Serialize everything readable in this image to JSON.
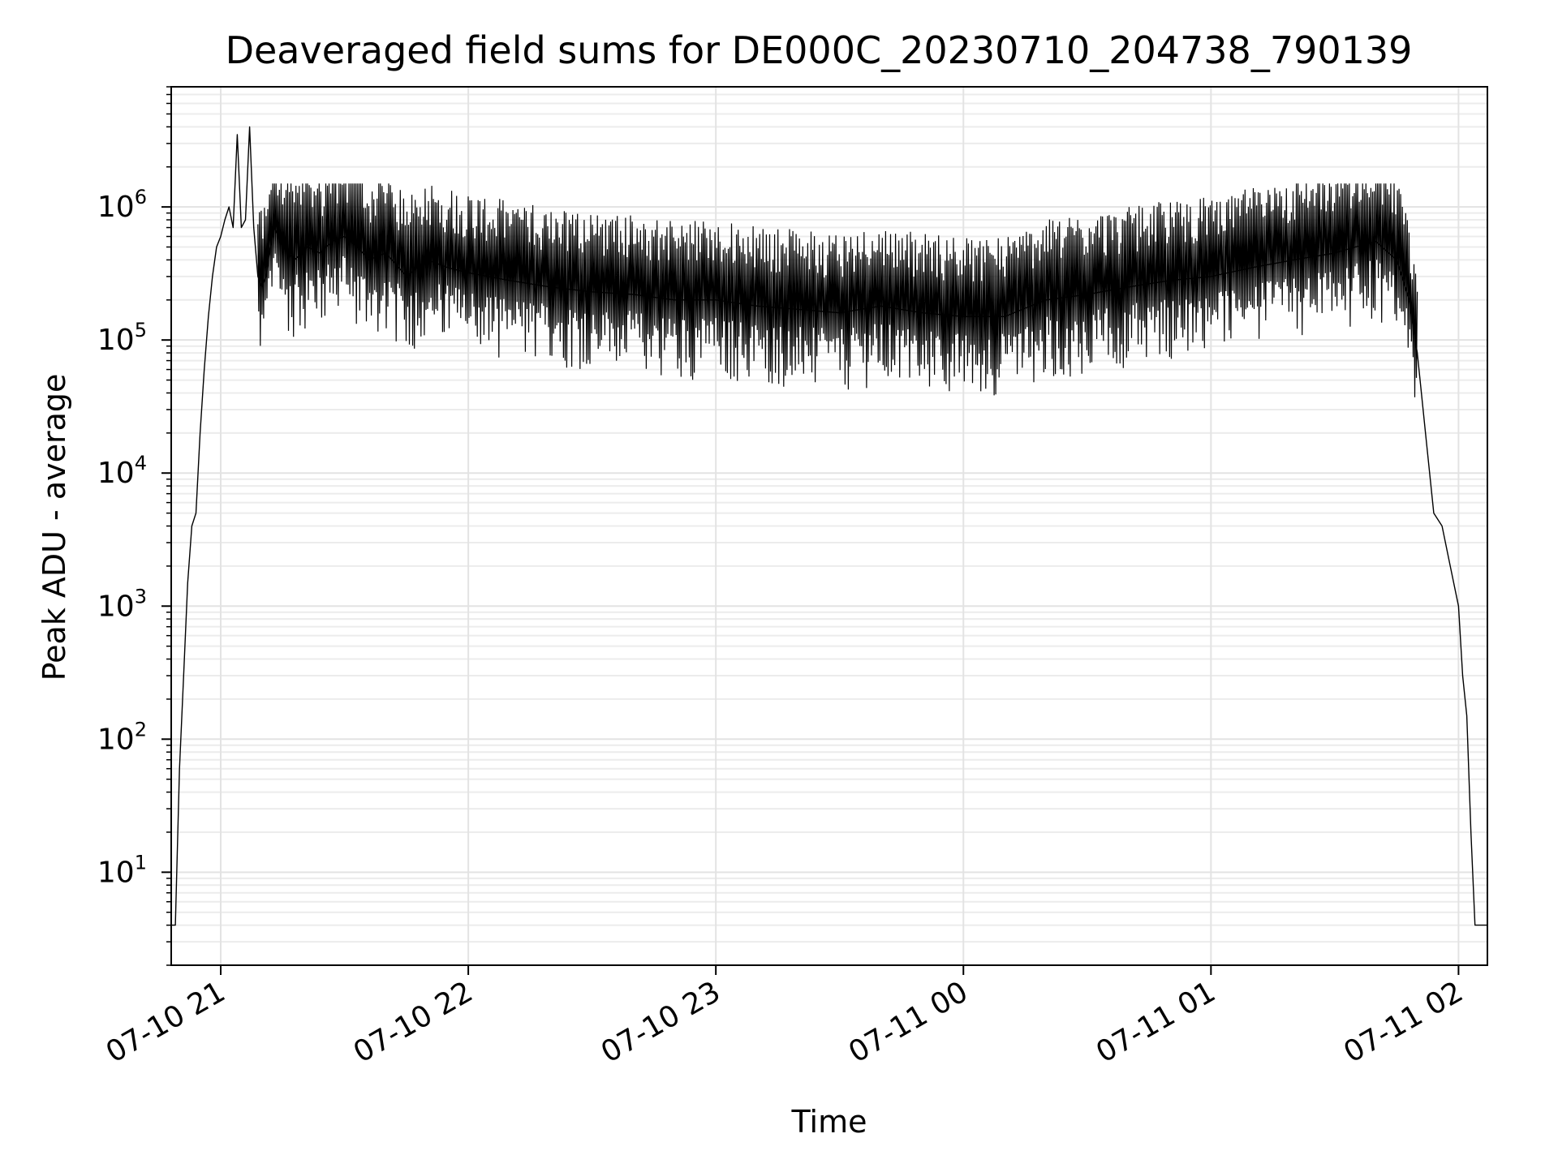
{
  "chart_data": {
    "type": "line",
    "title": "Deaveraged field sums for DE000C_20230710_204738_790139",
    "xlabel": "Time",
    "ylabel": "Peak ADU - average",
    "yscale": "log",
    "ylim": [
      2,
      8000000
    ],
    "xlim": [
      "07-10 20:48",
      "07-11 02:07"
    ],
    "grid": "major and minor, light gray",
    "line_color": "#000000",
    "x_ticks": [
      "07-10 21",
      "07-10 22",
      "07-10 23",
      "07-11 00",
      "07-11 01",
      "07-11 02"
    ],
    "y_ticks": [
      {
        "base": "10",
        "exp": "1"
      },
      {
        "base": "10",
        "exp": "2"
      },
      {
        "base": "10",
        "exp": "3"
      },
      {
        "base": "10",
        "exp": "4"
      },
      {
        "base": "10",
        "exp": "5"
      },
      {
        "base": "10",
        "exp": "6"
      }
    ],
    "series": [
      {
        "x": [
          "07-10 20:48",
          "07-10 20:49",
          "07-10 20:50",
          "07-10 20:51",
          "07-10 20:52",
          "07-10 20:53",
          "07-10 20:54",
          "07-10 20:55",
          "07-10 20:56",
          "07-10 20:57",
          "07-10 20:58",
          "07-10 20:59",
          "07-10 21:00",
          "07-10 21:01",
          "07-10 21:02",
          "07-10 21:03",
          "07-10 21:04",
          "07-10 21:05",
          "07-10 21:06",
          "07-10 21:07",
          "07-10 21:08",
          "07-10 21:09",
          "07-10 21:10",
          "07-10 21:11",
          "07-10 21:12",
          "07-10 21:13",
          "07-10 21:15",
          "07-10 21:18",
          "07-10 21:21",
          "07-10 21:24",
          "07-10 21:27",
          "07-10 21:30",
          "07-10 21:33",
          "07-10 21:36",
          "07-10 21:40",
          "07-10 21:45",
          "07-10 21:50",
          "07-10 21:55",
          "07-10 22:00",
          "07-10 22:10",
          "07-10 22:20",
          "07-10 22:30",
          "07-10 22:40",
          "07-10 22:50",
          "07-10 23:00",
          "07-10 23:10",
          "07-10 23:20",
          "07-10 23:30",
          "07-10 23:40",
          "07-10 23:50",
          "07-11 00:00",
          "07-11 00:10",
          "07-11 00:20",
          "07-11 00:30",
          "07-11 00:40",
          "07-11 00:50",
          "07-11 01:00",
          "07-11 01:10",
          "07-11 01:20",
          "07-11 01:30",
          "07-11 01:35",
          "07-11 01:40",
          "07-11 01:45",
          "07-11 01:48",
          "07-11 01:50",
          "07-11 01:52",
          "07-11 01:54",
          "07-11 01:56",
          "07-11 01:58",
          "07-11 02:00",
          "07-11 02:01",
          "07-11 02:02",
          "07-11 02:03",
          "07-11 02:04",
          "07-11 02:05",
          "07-11 02:07"
        ],
        "y": [
          4,
          4,
          60,
          300,
          1500,
          4000,
          5000,
          20000,
          60000,
          150000,
          300000,
          500000,
          600000,
          800000,
          1000000,
          700000,
          3500000,
          700000,
          800000,
          4000000,
          700000,
          300000,
          250000,
          300000,
          500000,
          700000,
          500000,
          400000,
          500000,
          450000,
          550000,
          600000,
          500000,
          400000,
          450000,
          300000,
          400000,
          350000,
          320000,
          280000,
          250000,
          230000,
          220000,
          200000,
          200000,
          180000,
          170000,
          160000,
          180000,
          160000,
          150000,
          150000,
          200000,
          220000,
          250000,
          280000,
          300000,
          350000,
          400000,
          450000,
          500000,
          550000,
          400000,
          200000,
          80000,
          20000,
          5000,
          4000,
          2000,
          1000,
          300,
          150,
          20,
          4,
          4,
          4
        ]
      }
    ]
  }
}
